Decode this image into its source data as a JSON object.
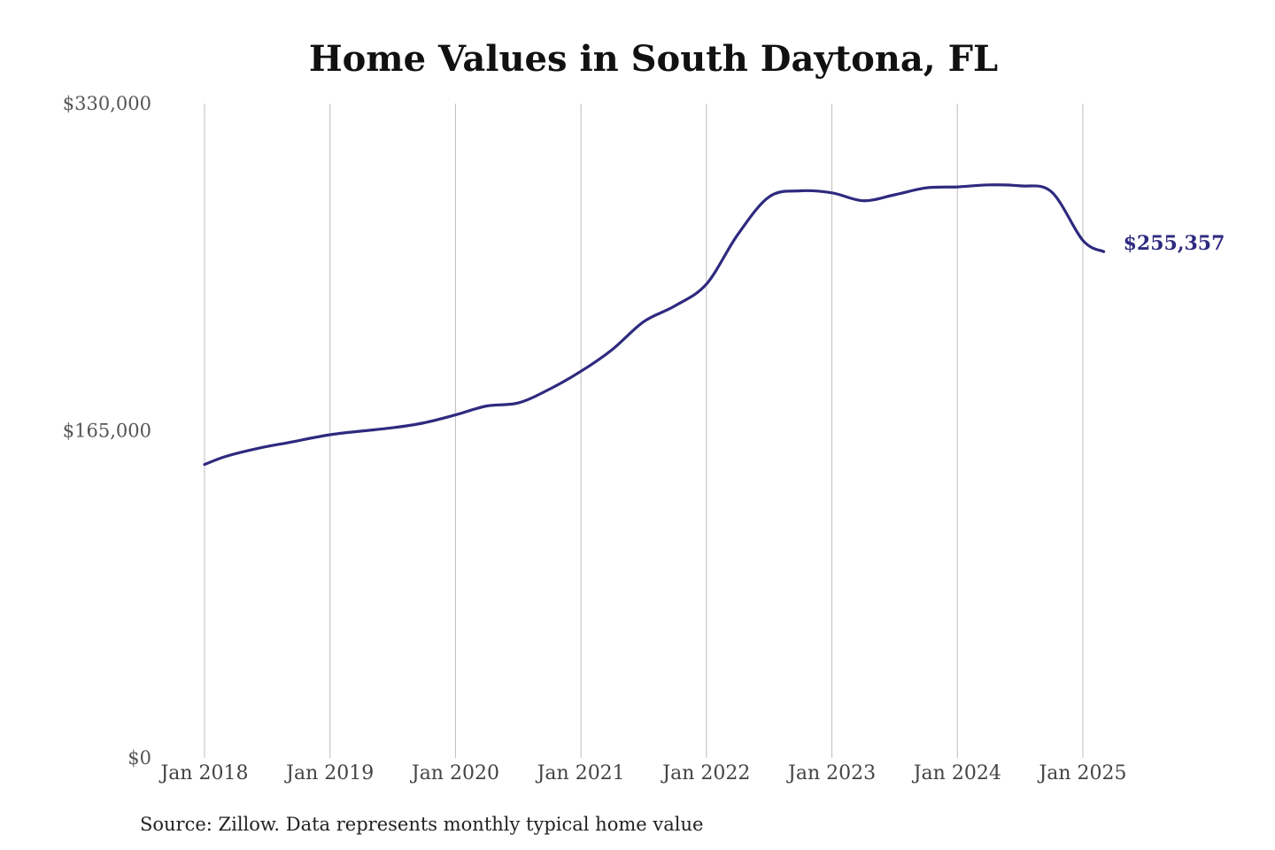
{
  "chart_data": {
    "type": "line",
    "title": "Home Values in South Daytona, FL",
    "source": "Source: Zillow. Data represents monthly typical home value",
    "ylim": [
      0,
      330000
    ],
    "y_ticks": [
      {
        "value": 0,
        "label": "$0"
      },
      {
        "value": 165000,
        "label": "$165,000"
      },
      {
        "value": 330000,
        "label": "$330,000"
      }
    ],
    "x_ticks": [
      {
        "value": "2018-01",
        "label": "Jan 2018"
      },
      {
        "value": "2019-01",
        "label": "Jan 2019"
      },
      {
        "value": "2020-01",
        "label": "Jan 2020"
      },
      {
        "value": "2021-01",
        "label": "Jan 2021"
      },
      {
        "value": "2022-01",
        "label": "Jan 2022"
      },
      {
        "value": "2023-01",
        "label": "Jan 2023"
      },
      {
        "value": "2024-01",
        "label": "Jan 2024"
      },
      {
        "value": "2025-01",
        "label": "Jan 2025"
      }
    ],
    "grid": "vertical",
    "line_color": "#2e2a7f",
    "end_label": "$255,357",
    "series": [
      {
        "x": [
          "2018-01",
          "2018-03",
          "2018-06",
          "2018-09",
          "2019-01",
          "2019-04",
          "2019-07",
          "2019-10",
          "2020-01",
          "2020-04",
          "2020-07",
          "2020-10",
          "2021-01",
          "2021-04",
          "2021-07",
          "2021-10",
          "2022-01",
          "2022-04",
          "2022-07",
          "2022-10",
          "2023-01",
          "2023-04",
          "2023-07",
          "2023-10",
          "2024-01",
          "2024-04",
          "2024-07",
          "2024-10",
          "2025-01",
          "2025-03"
        ],
        "y": [
          148000,
          152000,
          156000,
          159000,
          163000,
          164800,
          166500,
          169000,
          173000,
          177500,
          179000,
          186000,
          195000,
          206000,
          220000,
          228000,
          239000,
          264000,
          283000,
          286000,
          285000,
          281000,
          284000,
          287500,
          288000,
          289000,
          288500,
          285500,
          261000,
          255357
        ]
      }
    ]
  }
}
